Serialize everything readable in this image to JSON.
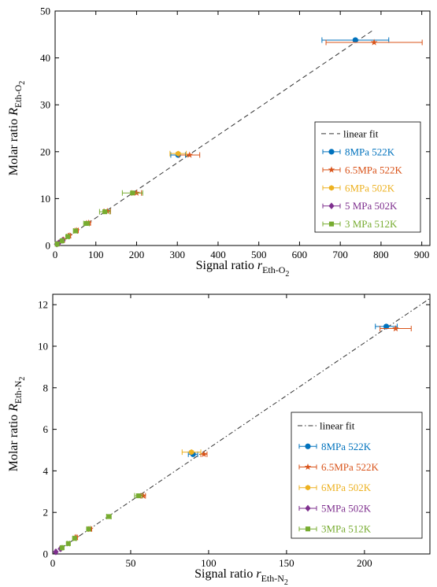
{
  "chart_data": [
    {
      "type": "scatter",
      "title": "",
      "xlabel_main": "Signal ratio",
      "xlabel_sym": "r",
      "xlabel_sub": "Eth-O",
      "xlabel_sub2": "2",
      "ylabel_main": "Molar ratio",
      "ylabel_sym": "R",
      "ylabel_sub": "Eth-O",
      "ylabel_sub2": "2",
      "xlim": [
        0,
        920
      ],
      "ylim": [
        0,
        50
      ],
      "xticks": [
        0,
        100,
        200,
        300,
        400,
        500,
        600,
        700,
        800,
        900
      ],
      "yticks": [
        0,
        10,
        20,
        30,
        40,
        50
      ],
      "grid": false,
      "legend_position": "bottom-right",
      "fit": {
        "name": "linear fit",
        "style": "dashed",
        "x": [
          0,
          782
        ],
        "y": [
          0,
          46
        ]
      },
      "series": [
        {
          "name": "8MPa 522K",
          "color": "#0072BD",
          "marker": "circle",
          "points": [
            {
              "x": 737,
              "y": 43.8,
              "xerr": 82
            },
            {
              "x": 302,
              "y": 19.3,
              "xerr": 18
            }
          ]
        },
        {
          "name": "6.5MPa 522K",
          "color": "#D95319",
          "marker": "star",
          "points": [
            {
              "x": 783,
              "y": 43.3,
              "xerr": 118
            },
            {
              "x": 330,
              "y": 19.3,
              "xerr": 25
            },
            {
              "x": 200,
              "y": 11.2,
              "xerr": 12
            },
            {
              "x": 128,
              "y": 7.3,
              "xerr": 8
            },
            {
              "x": 82,
              "y": 4.8,
              "xerr": 5
            },
            {
              "x": 53,
              "y": 3.2,
              "xerr": 4
            },
            {
              "x": 35,
              "y": 2.1,
              "xerr": 3
            },
            {
              "x": 20,
              "y": 1.2,
              "xerr": 2
            },
            {
              "x": 8,
              "y": 0.5,
              "xerr": 1
            }
          ]
        },
        {
          "name": "6MPa 502K",
          "color": "#EDB120",
          "marker": "hexagon",
          "points": [
            {
              "x": 302,
              "y": 19.6,
              "xerr": 20
            }
          ]
        },
        {
          "name": "5 MPa 502K",
          "color": "#7E2F8E",
          "marker": "diamond",
          "points": [
            {
              "x": 10,
              "y": 0.6,
              "xerr": 1
            },
            {
              "x": 19,
              "y": 1.1,
              "xerr": 1.5
            },
            {
              "x": 4,
              "y": 0.3,
              "xerr": 0.5
            }
          ]
        },
        {
          "name": "3 MPa 512K",
          "color": "#77AC30",
          "marker": "square",
          "points": [
            {
              "x": 190,
              "y": 11.2,
              "xerr": 25
            },
            {
              "x": 122,
              "y": 7.2,
              "xerr": 13
            },
            {
              "x": 77,
              "y": 4.7,
              "xerr": 7
            },
            {
              "x": 50,
              "y": 3.1,
              "xerr": 5
            },
            {
              "x": 31,
              "y": 1.9,
              "xerr": 3
            },
            {
              "x": 17,
              "y": 1.0,
              "xerr": 2
            },
            {
              "x": 5,
              "y": 0.3,
              "xerr": 1
            }
          ]
        }
      ]
    },
    {
      "type": "scatter",
      "title": "",
      "xlabel_main": "Signal ratio",
      "xlabel_sym": "r",
      "xlabel_sub": "Eth-N",
      "xlabel_sub2": "2",
      "ylabel_main": "Molar ratio",
      "ylabel_sym": "R",
      "ylabel_sub": "Eth-N",
      "ylabel_sub2": "2",
      "xlim": [
        0,
        242
      ],
      "ylim": [
        0,
        12.5
      ],
      "xticks": [
        0,
        50,
        100,
        150,
        200
      ],
      "yticks": [
        0,
        2,
        4,
        6,
        8,
        10,
        12
      ],
      "grid": false,
      "legend_position": "bottom-right",
      "fit": {
        "name": "linear fit",
        "style": "dashdot",
        "x": [
          0,
          242
        ],
        "y": [
          0,
          12.3
        ]
      },
      "series": [
        {
          "name": "8MPa 522K",
          "color": "#0072BD",
          "marker": "circle",
          "points": [
            {
              "x": 214,
              "y": 10.95,
              "xerr": 7
            },
            {
              "x": 90,
              "y": 4.8,
              "xerr": 3
            }
          ]
        },
        {
          "name": "6.5MPa 522K",
          "color": "#D95319",
          "marker": "star",
          "points": [
            {
              "x": 220,
              "y": 10.85,
              "xerr": 10
            },
            {
              "x": 97,
              "y": 4.8,
              "xerr": 2
            },
            {
              "x": 58,
              "y": 2.8,
              "xerr": 1.5
            },
            {
              "x": 24,
              "y": 1.2,
              "xerr": 1
            },
            {
              "x": 15,
              "y": 0.8,
              "xerr": 0.8
            }
          ]
        },
        {
          "name": "6MPa 502K",
          "color": "#EDB120",
          "marker": "hexagon",
          "points": [
            {
              "x": 89,
              "y": 4.9,
              "xerr": 6
            }
          ]
        },
        {
          "name": "5MPa 502K",
          "color": "#7E2F8E",
          "marker": "diamond",
          "points": [
            {
              "x": 2,
              "y": 0.1,
              "xerr": 0.5
            },
            {
              "x": 5,
              "y": 0.25,
              "xerr": 0.5
            }
          ]
        },
        {
          "name": "3MPa 512K",
          "color": "#77AC30",
          "marker": "square",
          "points": [
            {
              "x": 55,
              "y": 2.8,
              "xerr": 2.5
            },
            {
              "x": 36,
              "y": 1.8,
              "xerr": 1.5
            },
            {
              "x": 23,
              "y": 1.2,
              "xerr": 1
            },
            {
              "x": 14,
              "y": 0.75,
              "xerr": 1
            },
            {
              "x": 10,
              "y": 0.5,
              "xerr": 0.8
            },
            {
              "x": 6,
              "y": 0.3,
              "xerr": 0.5
            }
          ]
        }
      ]
    }
  ]
}
